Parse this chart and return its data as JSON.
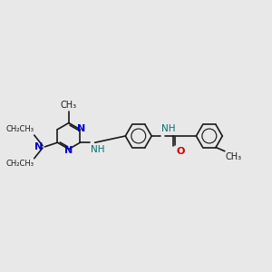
{
  "bg_color": "#e8e8e8",
  "bond_color": "#1a1a1a",
  "N_color": "#0000cc",
  "O_color": "#cc0000",
  "NH_color": "#007070",
  "font_size": 7.5,
  "bond_width": 1.2,
  "figsize": [
    3.0,
    3.0
  ],
  "dpi": 100,
  "xlim": [
    0,
    12
  ],
  "ylim": [
    2,
    9
  ]
}
